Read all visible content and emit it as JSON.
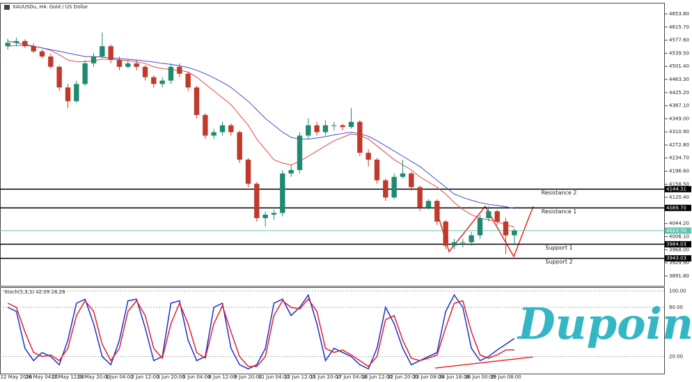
{
  "chart_data": [
    {
      "type": "candlestick",
      "title": "XAUUSDu, H4: Gold / US Dollar",
      "categories": [
        null,
        "22 May 2026",
        null,
        null,
        "26 May 04:00",
        null,
        null,
        "27 May 12:00",
        null,
        null,
        "28 May 20:00",
        null,
        null,
        "1 Jun 04:00",
        null,
        null,
        "2 Jun 12:00",
        null,
        null,
        "3 Jun 20:00",
        null,
        null,
        "5 Jun 04:00",
        null,
        null,
        "8 Jun 12:00",
        null,
        null,
        "9 Jun 20:00",
        null,
        null,
        "11 Jun 04:00",
        null,
        null,
        "12 Jun 12:00",
        null,
        null,
        "15 Jun 20:00",
        null,
        null,
        "17 Jun 04:00",
        null,
        null,
        "18 Jun 12:00",
        null,
        null,
        "22 Jun 20:00",
        null,
        null,
        "23 Jun 08:00",
        null,
        null,
        "24 Jun 16:00",
        null,
        null,
        "26 Jun 00:00",
        null,
        null,
        "29 Jun 08:00",
        null
      ],
      "open": [
        4560,
        4570,
        4575,
        4560,
        4545,
        4530,
        4500,
        4440,
        4400,
        4450,
        4510,
        4530,
        4560,
        4520,
        4500,
        4510,
        4500,
        4470,
        4450,
        4460,
        4500,
        4480,
        4440,
        4360,
        4300,
        4310,
        4330,
        4310,
        4230,
        4160,
        4060,
        4070,
        4075,
        4190,
        4200,
        4300,
        4330,
        4310,
        4330,
        4330,
        4325,
        4340,
        4250,
        4230,
        4170,
        4120,
        4180,
        4190,
        4150,
        4090,
        4110,
        4050,
        3980,
        3990,
        3990,
        4010,
        4060,
        4080,
        4050,
        4010
      ],
      "high": [
        4582,
        4585,
        4580,
        4568,
        4550,
        4538,
        4505,
        4450,
        4460,
        4520,
        4540,
        4600,
        4565,
        4530,
        4520,
        4520,
        4505,
        4475,
        4470,
        4510,
        4510,
        4485,
        4445,
        4365,
        4320,
        4340,
        4335,
        4315,
        4235,
        4165,
        4080,
        4085,
        4200,
        4215,
        4310,
        4350,
        4340,
        4345,
        4340,
        4335,
        4380,
        4345,
        4260,
        4235,
        4175,
        4190,
        4230,
        4195,
        4155,
        4115,
        4115,
        4055,
        4000,
        4000,
        4020,
        4070,
        4095,
        4085,
        4060,
        4030
      ],
      "low": [
        4550,
        4560,
        4555,
        4540,
        4525,
        4495,
        4430,
        4380,
        4395,
        4445,
        4500,
        4525,
        4510,
        4490,
        4495,
        4490,
        4460,
        4440,
        4440,
        4450,
        4470,
        4430,
        4350,
        4290,
        4290,
        4300,
        4300,
        4220,
        4150,
        4050,
        4035,
        4055,
        4065,
        4180,
        4190,
        4290,
        4300,
        4300,
        4315,
        4315,
        4320,
        4240,
        4210,
        4160,
        4110,
        4115,
        4175,
        4140,
        4080,
        4085,
        4040,
        3970,
        3970,
        3975,
        3980,
        4000,
        4050,
        4040,
        3955,
        3980
      ],
      "close": [
        4570,
        4575,
        4560,
        4545,
        4530,
        4500,
        4440,
        4400,
        4450,
        4510,
        4530,
        4560,
        4520,
        4500,
        4510,
        4500,
        4470,
        4450,
        4460,
        4500,
        4480,
        4440,
        4360,
        4300,
        4310,
        4330,
        4310,
        4230,
        4160,
        4060,
        4070,
        4075,
        4190,
        4200,
        4300,
        4330,
        4310,
        4330,
        4330,
        4325,
        4340,
        4250,
        4230,
        4170,
        4120,
        4180,
        4190,
        4150,
        4090,
        4110,
        4050,
        3980,
        3990,
        3990,
        4010,
        4060,
        4080,
        4050,
        4010,
        4024
      ],
      "up_color": "#1f8a70",
      "down_color": "#c0392b",
      "lines": [
        {
          "color": "#e8453c",
          "values": [
            4560,
            4562,
            4562,
            4560,
            4555,
            4548,
            4535,
            4520,
            4515,
            4515,
            4518,
            4522,
            4522,
            4520,
            4518,
            4515,
            4510,
            4500,
            4495,
            4492,
            4490,
            4485,
            4470,
            4450,
            4430,
            4410,
            4390,
            4360,
            4330,
            4290,
            4260,
            4230,
            4220,
            4215,
            4225,
            4240,
            4255,
            4270,
            4285,
            4295,
            4305,
            4300,
            4290,
            4270,
            4250,
            4230,
            4215,
            4200,
            4180,
            4165,
            4150,
            4130,
            4105,
            4085,
            4070,
            4060,
            4055,
            4050,
            4040,
            4035
          ]
        },
        {
          "color": "#3d4fd6",
          "values": [
            4575,
            4570,
            4565,
            4560,
            4555,
            4550,
            4545,
            4540,
            4535,
            4530,
            4530,
            4528,
            4526,
            4524,
            4522,
            4520,
            4517,
            4514,
            4510,
            4507,
            4503,
            4498,
            4490,
            4480,
            4468,
            4455,
            4440,
            4420,
            4400,
            4375,
            4350,
            4330,
            4310,
            4295,
            4290,
            4290,
            4293,
            4297,
            4302,
            4306,
            4310,
            4305,
            4298,
            4285,
            4270,
            4255,
            4240,
            4225,
            4210,
            4190,
            4170,
            4150,
            4130,
            4120,
            4112,
            4105,
            4100,
            4097,
            4093,
            4088
          ]
        }
      ],
      "levels": [
        {
          "name": "Resistance 2",
          "value": 4144.31,
          "label": "4144.31",
          "color": "#000000"
        },
        {
          "name": "Resistance 1",
          "value": 4089.7,
          "label": "4089.70",
          "color": "#000000"
        },
        {
          "value": 4023.7,
          "label": "4023.70",
          "color": "#5cc4b0"
        },
        {
          "name": "Support 1",
          "value": 3984.03,
          "label": "3984.03",
          "color": "#000000"
        },
        {
          "name": "Support 2",
          "value": 3943.03,
          "label": "3943.03",
          "color": "#000000"
        }
      ],
      "ylim": [
        3863.2,
        4684.2
      ],
      "yticks": [
        {
          "value": 4653.8,
          "label": "4653.80"
        },
        {
          "value": 4615.7,
          "label": "4615.70"
        },
        {
          "value": 4577.6,
          "label": "4577.60"
        },
        {
          "value": 4539.5,
          "label": "4539.50"
        },
        {
          "value": 4501.4,
          "label": "4501.40"
        },
        {
          "value": 4463.3,
          "label": "4463.30"
        },
        {
          "value": 4425.2,
          "label": "4425.20"
        },
        {
          "value": 4387.1,
          "label": "4387.10"
        },
        {
          "value": 4349,
          "label": "4349.00"
        },
        {
          "value": 4310.9,
          "label": "4310.90"
        },
        {
          "value": 4272.8,
          "label": "4272.80"
        },
        {
          "value": 4234.7,
          "label": "4234.70"
        },
        {
          "value": 4196.6,
          "label": "4196.60"
        },
        {
          "value": 4158.5,
          "label": "4158.50"
        },
        {
          "value": 4120.4,
          "label": "4120.40"
        },
        {
          "value": 4044.2,
          "label": "4044.20"
        },
        {
          "value": 4006.1,
          "label": "4006.10"
        },
        {
          "value": 3968,
          "label": "3968.00"
        },
        {
          "value": 3929.9,
          "label": "3929.90"
        },
        {
          "value": 3891.8,
          "label": "3891.80"
        }
      ]
    },
    {
      "type": "line",
      "title": "Stoch(5,3,3) 42.09 28.26",
      "series": [
        {
          "color": "#1a2fc9",
          "values": [
            80,
            75,
            30,
            15,
            25,
            20,
            10,
            40,
            85,
            90,
            60,
            20,
            10,
            40,
            88,
            90,
            55,
            15,
            20,
            85,
            88,
            40,
            15,
            20,
            80,
            85,
            30,
            10,
            5,
            10,
            30,
            85,
            90,
            70,
            80,
            95,
            60,
            15,
            30,
            25,
            20,
            10,
            5,
            30,
            80,
            60,
            30,
            10,
            15,
            20,
            25,
            75,
            95,
            80,
            30,
            15,
            20,
            28,
            35,
            42.09
          ]
        },
        {
          "color": "#e0202a",
          "values": [
            85,
            80,
            50,
            25,
            20,
            22,
            15,
            30,
            70,
            88,
            75,
            35,
            15,
            30,
            75,
            88,
            70,
            30,
            18,
            60,
            85,
            60,
            25,
            18,
            60,
            82,
            50,
            20,
            8,
            8,
            20,
            70,
            88,
            80,
            78,
            90,
            75,
            30,
            25,
            28,
            22,
            15,
            8,
            20,
            65,
            70,
            40,
            18,
            15,
            18,
            22,
            55,
            85,
            88,
            50,
            22,
            18,
            22,
            28,
            28.26
          ]
        }
      ],
      "ylim": [
        0,
        102
      ],
      "yticks": [
        {
          "value": 100,
          "label": "100.00"
        },
        {
          "value": 80,
          "label": "80.00"
        },
        {
          "value": 20,
          "label": "20.00"
        }
      ]
    }
  ],
  "logo": "Dupoin"
}
